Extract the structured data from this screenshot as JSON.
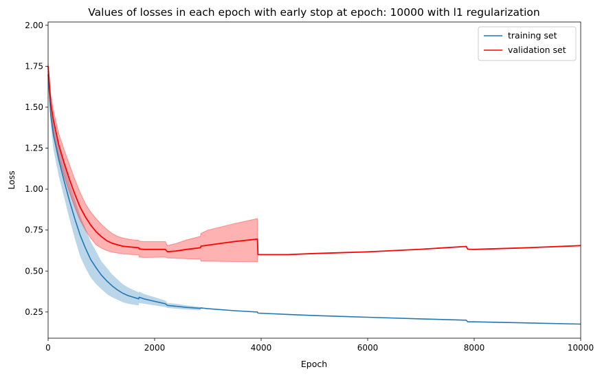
{
  "chart_data": {
    "type": "line",
    "title": "Values of losses in each epoch with early stop at epoch: 10000 with l1 regularization",
    "xlabel": "Epoch",
    "ylabel": "Loss",
    "xlim": [
      0,
      10000
    ],
    "ylim": [
      0.09,
      2.02
    ],
    "xticks": [
      0,
      2000,
      4000,
      6000,
      8000,
      10000
    ],
    "xtick_labels": [
      "0",
      "2000",
      "4000",
      "6000",
      "8000",
      "10000"
    ],
    "yticks": [
      0.25,
      0.5,
      0.75,
      1.0,
      1.25,
      1.5,
      1.75,
      2.0
    ],
    "ytick_labels": [
      "0.25",
      "0.50",
      "0.75",
      "1.00",
      "1.25",
      "1.50",
      "1.75",
      "2.00"
    ],
    "grid": false,
    "legend_position": "top-right",
    "series": [
      {
        "name": "training set",
        "color": "#1f77b4",
        "band_color": "#1f77b4",
        "x": [
          0,
          50,
          100,
          200,
          300,
          400,
          500,
          600,
          700,
          800,
          900,
          1000,
          1100,
          1200,
          1300,
          1400,
          1500,
          1600,
          1700,
          1710,
          1800,
          2000,
          2200,
          2240,
          2400,
          2600,
          2860,
          2870,
          3000,
          3500,
          3930,
          3940,
          4500,
          5000,
          6000,
          7000,
          7850,
          7880,
          8000,
          9000,
          10000
        ],
        "y": [
          1.7,
          1.45,
          1.33,
          1.18,
          1.05,
          0.93,
          0.82,
          0.72,
          0.64,
          0.57,
          0.52,
          0.475,
          0.44,
          0.41,
          0.385,
          0.365,
          0.35,
          0.34,
          0.33,
          0.34,
          0.33,
          0.315,
          0.3,
          0.29,
          0.285,
          0.278,
          0.272,
          0.275,
          0.27,
          0.258,
          0.25,
          0.243,
          0.235,
          0.228,
          0.218,
          0.208,
          0.2,
          0.19,
          0.19,
          0.183,
          0.176
        ],
        "y_lower": [
          1.68,
          1.39,
          1.24,
          1.08,
          0.95,
          0.82,
          0.7,
          0.59,
          0.52,
          0.46,
          0.42,
          0.39,
          0.36,
          0.34,
          0.325,
          0.31,
          0.3,
          0.295,
          0.29,
          0.305,
          0.3,
          0.29,
          0.28,
          0.275,
          0.27,
          0.265,
          0.26,
          0.275,
          0.27,
          0.258,
          0.25,
          0.243,
          0.235,
          0.228,
          0.218,
          0.208,
          0.2,
          0.19,
          0.19,
          0.183,
          0.176
        ],
        "y_upper": [
          1.72,
          1.5,
          1.41,
          1.27,
          1.15,
          1.04,
          0.94,
          0.84,
          0.76,
          0.68,
          0.62,
          0.56,
          0.52,
          0.48,
          0.45,
          0.42,
          0.4,
          0.385,
          0.37,
          0.375,
          0.36,
          0.34,
          0.32,
          0.305,
          0.3,
          0.29,
          0.28,
          0.275,
          0.27,
          0.258,
          0.25,
          0.243,
          0.235,
          0.228,
          0.218,
          0.208,
          0.2,
          0.19,
          0.19,
          0.183,
          0.176
        ]
      },
      {
        "name": "validation set",
        "color": "#ff0000",
        "band_color": "#ff0000",
        "x": [
          0,
          50,
          100,
          200,
          300,
          400,
          500,
          600,
          700,
          800,
          900,
          1000,
          1100,
          1200,
          1300,
          1400,
          1500,
          1600,
          1700,
          1710,
          1800,
          2000,
          2200,
          2240,
          2400,
          2600,
          2860,
          2870,
          3000,
          3500,
          3930,
          3940,
          4500,
          5000,
          6000,
          7000,
          7850,
          7880,
          8000,
          9000,
          10000
        ],
        "y": [
          1.75,
          1.52,
          1.42,
          1.27,
          1.16,
          1.06,
          0.97,
          0.89,
          0.83,
          0.78,
          0.74,
          0.71,
          0.685,
          0.67,
          0.66,
          0.652,
          0.648,
          0.645,
          0.642,
          0.635,
          0.632,
          0.632,
          0.632,
          0.618,
          0.622,
          0.632,
          0.642,
          0.652,
          0.658,
          0.68,
          0.695,
          0.6,
          0.6,
          0.607,
          0.617,
          0.633,
          0.65,
          0.633,
          0.632,
          0.642,
          0.655
        ],
        "y_lower": [
          1.73,
          1.47,
          1.36,
          1.2,
          1.08,
          0.98,
          0.89,
          0.81,
          0.75,
          0.7,
          0.66,
          0.64,
          0.625,
          0.615,
          0.61,
          0.605,
          0.602,
          0.6,
          0.598,
          0.585,
          0.583,
          0.584,
          0.585,
          0.58,
          0.578,
          0.575,
          0.572,
          0.56,
          0.56,
          0.558,
          0.556,
          0.6,
          0.6,
          0.607,
          0.617,
          0.633,
          0.65,
          0.633,
          0.632,
          0.642,
          0.655
        ],
        "y_upper": [
          1.77,
          1.57,
          1.48,
          1.34,
          1.24,
          1.15,
          1.06,
          0.98,
          0.91,
          0.86,
          0.82,
          0.785,
          0.755,
          0.73,
          0.712,
          0.702,
          0.695,
          0.69,
          0.688,
          0.682,
          0.68,
          0.68,
          0.68,
          0.655,
          0.668,
          0.69,
          0.712,
          0.73,
          0.75,
          0.79,
          0.82,
          0.6,
          0.6,
          0.607,
          0.617,
          0.633,
          0.65,
          0.633,
          0.632,
          0.642,
          0.655
        ]
      }
    ]
  }
}
